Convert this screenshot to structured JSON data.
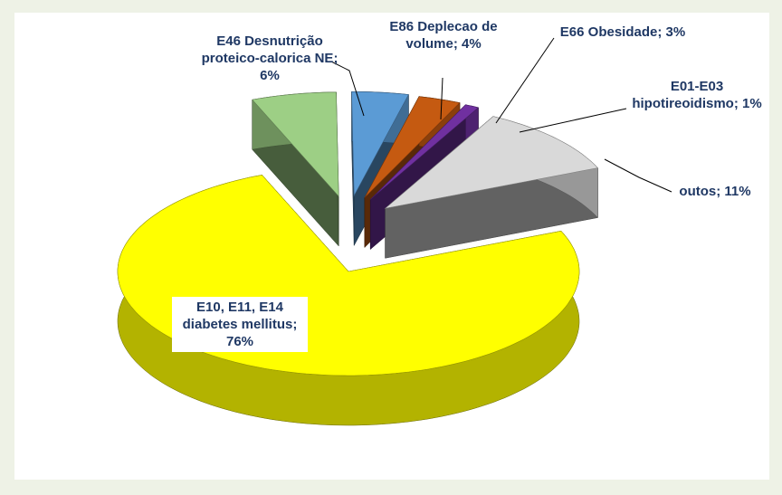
{
  "chart_data": {
    "type": "pie3d",
    "categories": [
      "E46 Desnutrição proteico-calorica NE; 6%",
      "E86  Deplecao de volume; 4%",
      "E66   Obesidade; 3%",
      "E01-E03 hipotireoidismo; 1%",
      "outos; 11%",
      "E10, E11, E14 diabetes mellitus; 76%"
    ],
    "values": [
      6,
      4,
      3,
      1,
      11,
      76
    ],
    "colors": [
      "#9dcf85",
      "#5b9bd5",
      "#c55a11",
      "#7030a0",
      "#d9d9d9",
      "#ffff00"
    ]
  }
}
